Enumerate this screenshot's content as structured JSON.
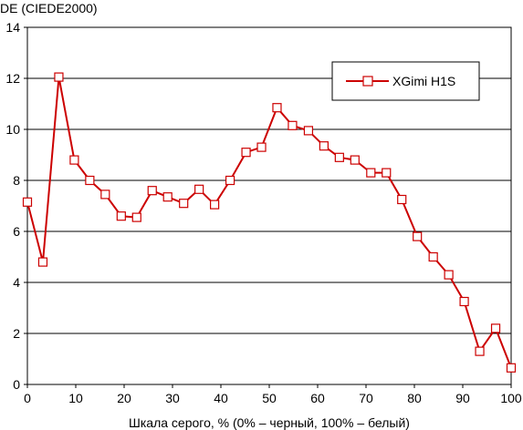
{
  "chart_data": {
    "type": "line",
    "title": "",
    "ylabel": "DE (CIEDE2000)",
    "xlabel": "Шкала серого, % (0% – черный, 100% – белый)",
    "xlim": [
      0,
      100
    ],
    "ylim": [
      0,
      14
    ],
    "x_ticks": [
      0,
      10,
      20,
      30,
      40,
      50,
      60,
      70,
      80,
      90,
      100
    ],
    "y_ticks": [
      0,
      2,
      4,
      6,
      8,
      10,
      12,
      14
    ],
    "grid": "horizontal",
    "legend_position": "top-right",
    "series": [
      {
        "name": "XGimi H1S",
        "color": "#cc0000",
        "marker": "hollow-square",
        "x": [
          0,
          3.2,
          6.5,
          9.7,
          12.9,
          16.1,
          19.4,
          22.6,
          25.8,
          29.0,
          32.3,
          35.5,
          38.7,
          41.9,
          45.2,
          48.4,
          51.6,
          54.8,
          58.1,
          61.3,
          64.5,
          67.7,
          71.0,
          74.2,
          77.4,
          80.6,
          83.9,
          87.1,
          90.3,
          93.5,
          96.8,
          100
        ],
        "y": [
          7.15,
          4.8,
          12.05,
          8.8,
          8.0,
          7.45,
          6.6,
          6.55,
          7.6,
          7.35,
          7.1,
          7.65,
          7.05,
          8.0,
          9.1,
          9.3,
          10.85,
          10.15,
          9.95,
          9.35,
          8.9,
          8.8,
          8.3,
          8.3,
          7.25,
          5.8,
          5.0,
          4.3,
          3.25,
          1.3,
          2.2,
          0.65
        ]
      }
    ]
  }
}
